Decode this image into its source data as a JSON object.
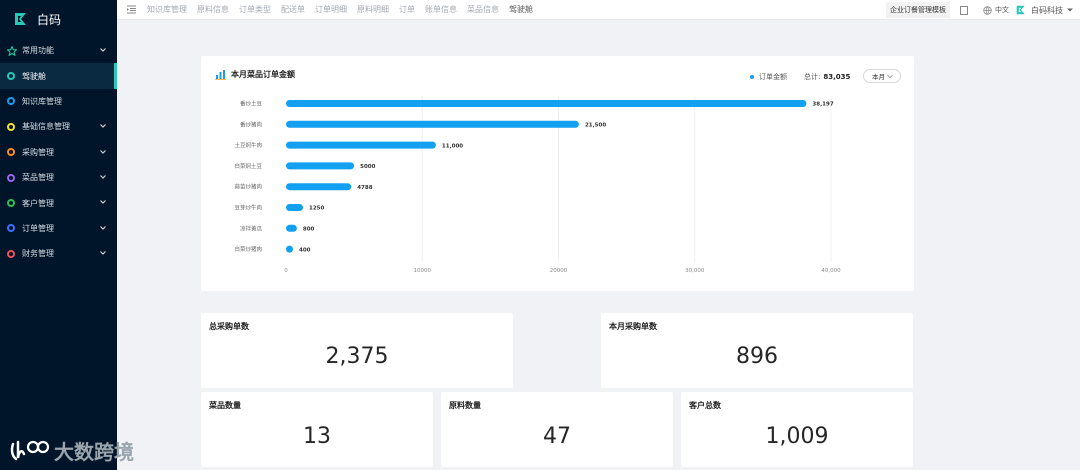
{
  "app": {
    "name": "白码"
  },
  "sidebar": {
    "items": [
      {
        "label": "常用功能",
        "type": "group",
        "color": "#2bd1a4"
      },
      {
        "label": "驾驶舱",
        "color": "#27c8b8",
        "active": true
      },
      {
        "label": "知识库管理",
        "color": "#1a9df0"
      },
      {
        "label": "基础信息管理",
        "color": "#f5e12e",
        "caret": true
      },
      {
        "label": "采购管理",
        "color": "#ff8c1a",
        "caret": true
      },
      {
        "label": "菜品管理",
        "color": "#9a63f0",
        "caret": true
      },
      {
        "label": "客户管理",
        "color": "#2fbf52",
        "caret": true
      },
      {
        "label": "订单管理",
        "color": "#3e70ff",
        "caret": true
      },
      {
        "label": "财务管理",
        "color": "#f04e5a",
        "caret": true
      }
    ]
  },
  "topbar": {
    "tabs": [
      "知识库管理",
      "原料信息",
      "订单类型",
      "配送单",
      "订单明细",
      "原料明细",
      "订单",
      "账单信息",
      "菜品信息",
      "驾驶舱"
    ],
    "active_tab": "驾驶舱",
    "template_button": "企业订餐管理模板",
    "language": "中文",
    "user": "白码科技"
  },
  "chart_card": {
    "title": "本月菜品订单金额",
    "legend": "订单金额",
    "total_label": "总计:",
    "total_value": "83,035",
    "period": "本月"
  },
  "chart_data": {
    "type": "bar",
    "orientation": "horizontal",
    "title": "本月菜品订单金额",
    "categories": [
      "番炒土豆",
      "番炒猪肉",
      "土豆焖牛肉",
      "白菜焖土豆",
      "蒜苗炒猪肉",
      "豆芽炒牛肉",
      "凉拌黄瓜",
      "白菜炒猪肉"
    ],
    "values": [
      38197,
      21500,
      11000,
      5000,
      4788,
      1250,
      800,
      400
    ],
    "value_labels": [
      "38,197",
      "21,500",
      "11,000",
      "5000",
      "4788",
      "1250",
      "800",
      "400"
    ],
    "xlim": [
      0,
      40000
    ],
    "xticks": [
      "0",
      "10000",
      "20000",
      "30,000",
      "40,000"
    ],
    "grid": true,
    "legend": "top-right",
    "series_color": "#13a0f0"
  },
  "stats": {
    "total_purchase": {
      "label": "总采购单数",
      "value": "2,375"
    },
    "month_purchase": {
      "label": "本月采购单数",
      "value": "896"
    },
    "dish_count": {
      "label": "菜品数量",
      "value": "13"
    },
    "material_count": {
      "label": "原料数量",
      "value": "47"
    },
    "customer_count": {
      "label": "客户总数",
      "value": "1,009"
    }
  },
  "watermark": {
    "text": "大数跨境"
  }
}
